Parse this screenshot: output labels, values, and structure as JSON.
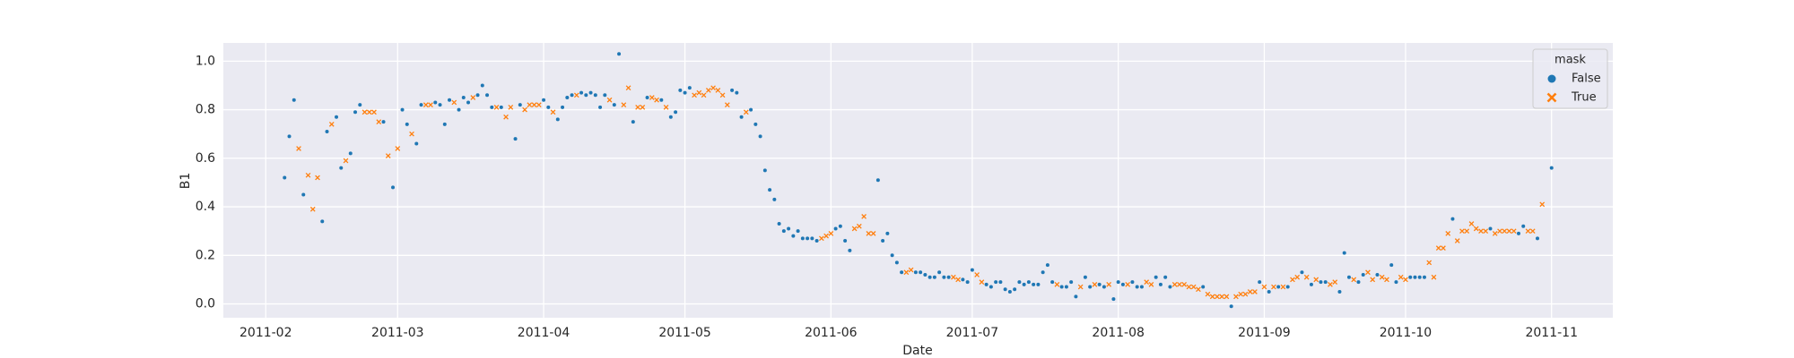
{
  "chart_data": {
    "type": "scatter",
    "xlabel": "Date",
    "ylabel": "B1",
    "legend_title": "mask",
    "legend_position": "upper right",
    "grid": true,
    "xlim": [
      "2011-01-23",
      "2011-11-14"
    ],
    "xticks": [
      {
        "value": "2011-02-01",
        "label": "2011-02"
      },
      {
        "value": "2011-03-01",
        "label": "2011-03"
      },
      {
        "value": "2011-04-01",
        "label": "2011-04"
      },
      {
        "value": "2011-05-01",
        "label": "2011-05"
      },
      {
        "value": "2011-06-01",
        "label": "2011-06"
      },
      {
        "value": "2011-07-01",
        "label": "2011-07"
      },
      {
        "value": "2011-08-01",
        "label": "2011-08"
      },
      {
        "value": "2011-09-01",
        "label": "2011-09"
      },
      {
        "value": "2011-10-01",
        "label": "2011-10"
      },
      {
        "value": "2011-11-01",
        "label": "2011-11"
      }
    ],
    "ylim": [
      -0.057,
      1.075
    ],
    "yticks": [
      {
        "value": 0,
        "label": "0.0"
      },
      0.2,
      0.4,
      0.6,
      0.8,
      {
        "value": 1,
        "label": "1.0"
      }
    ],
    "series": [
      {
        "name": "False",
        "color": "#1f77b4",
        "marker": "o",
        "x": [
          "2011-02-05",
          "2011-02-06",
          "2011-02-07",
          "2011-02-09",
          "2011-02-13",
          "2011-02-14",
          "2011-02-16",
          "2011-02-17",
          "2011-02-19",
          "2011-02-20",
          "2011-02-21",
          "2011-02-26",
          "2011-02-28",
          "2011-03-02",
          "2011-03-03",
          "2011-03-05",
          "2011-03-06",
          "2011-03-09",
          "2011-03-10",
          "2011-03-11",
          "2011-03-12",
          "2011-03-14",
          "2011-03-15",
          "2011-03-16",
          "2011-03-18",
          "2011-03-19",
          "2011-03-20",
          "2011-03-21",
          "2011-03-23",
          "2011-03-26",
          "2011-03-27",
          "2011-04-01",
          "2011-04-02",
          "2011-04-04",
          "2011-04-05",
          "2011-04-06",
          "2011-04-07",
          "2011-04-09",
          "2011-04-10",
          "2011-04-11",
          "2011-04-12",
          "2011-04-13",
          "2011-04-14",
          "2011-04-16",
          "2011-04-17",
          "2011-04-20",
          "2011-04-23",
          "2011-04-26",
          "2011-04-28",
          "2011-04-29",
          "2011-04-30",
          "2011-05-01",
          "2011-05-02",
          "2011-05-11",
          "2011-05-12",
          "2011-05-13",
          "2011-05-15",
          "2011-05-16",
          "2011-05-17",
          "2011-05-18",
          "2011-05-19",
          "2011-05-20",
          "2011-05-21",
          "2011-05-22",
          "2011-05-23",
          "2011-05-24",
          "2011-05-25",
          "2011-05-26",
          "2011-05-27",
          "2011-05-28",
          "2011-05-29",
          "2011-06-02",
          "2011-06-03",
          "2011-06-04",
          "2011-06-05",
          "2011-06-11",
          "2011-06-12",
          "2011-06-13",
          "2011-06-14",
          "2011-06-15",
          "2011-06-16",
          "2011-06-19",
          "2011-06-20",
          "2011-06-21",
          "2011-06-22",
          "2011-06-23",
          "2011-06-24",
          "2011-06-25",
          "2011-06-26",
          "2011-06-29",
          "2011-06-30",
          "2011-07-01",
          "2011-07-04",
          "2011-07-05",
          "2011-07-06",
          "2011-07-07",
          "2011-07-08",
          "2011-07-09",
          "2011-07-10",
          "2011-07-11",
          "2011-07-12",
          "2011-07-13",
          "2011-07-14",
          "2011-07-15",
          "2011-07-16",
          "2011-07-17",
          "2011-07-18",
          "2011-07-20",
          "2011-07-21",
          "2011-07-22",
          "2011-07-23",
          "2011-07-25",
          "2011-07-26",
          "2011-07-28",
          "2011-07-29",
          "2011-07-31",
          "2011-08-01",
          "2011-08-02",
          "2011-08-04",
          "2011-08-05",
          "2011-08-06",
          "2011-08-09",
          "2011-08-10",
          "2011-08-11",
          "2011-08-12",
          "2011-08-19",
          "2011-08-25",
          "2011-08-31",
          "2011-09-02",
          "2011-09-04",
          "2011-09-06",
          "2011-09-09",
          "2011-09-11",
          "2011-09-13",
          "2011-09-14",
          "2011-09-17",
          "2011-09-18",
          "2011-09-19",
          "2011-09-21",
          "2011-09-22",
          "2011-09-25",
          "2011-09-28",
          "2011-09-29",
          "2011-10-02",
          "2011-10-03",
          "2011-10-04",
          "2011-10-05",
          "2011-10-11",
          "2011-10-19",
          "2011-10-25",
          "2011-10-26",
          "2011-10-29",
          "2011-11-01"
        ],
        "values": [
          0.52,
          0.69,
          0.84,
          0.45,
          0.34,
          0.71,
          0.77,
          0.56,
          0.62,
          0.79,
          0.82,
          0.75,
          0.48,
          0.8,
          0.74,
          0.66,
          0.82,
          0.83,
          0.82,
          0.74,
          0.84,
          0.8,
          0.85,
          0.83,
          0.86,
          0.9,
          0.86,
          0.81,
          0.81,
          0.68,
          0.82,
          0.84,
          0.81,
          0.76,
          0.81,
          0.85,
          0.86,
          0.87,
          0.86,
          0.87,
          0.86,
          0.81,
          0.86,
          0.82,
          1.03,
          0.75,
          0.85,
          0.84,
          0.77,
          0.79,
          0.88,
          0.87,
          0.89,
          0.88,
          0.87,
          0.77,
          0.8,
          0.74,
          0.69,
          0.55,
          0.47,
          0.43,
          0.33,
          0.3,
          0.31,
          0.28,
          0.3,
          0.27,
          0.27,
          0.27,
          0.26,
          0.31,
          0.32,
          0.26,
          0.22,
          0.51,
          0.26,
          0.29,
          0.2,
          0.17,
          0.13,
          0.13,
          0.13,
          0.12,
          0.11,
          0.11,
          0.13,
          0.11,
          0.11,
          0.1,
          0.09,
          0.14,
          0.08,
          0.07,
          0.09,
          0.09,
          0.06,
          0.05,
          0.06,
          0.09,
          0.08,
          0.09,
          0.08,
          0.08,
          0.13,
          0.16,
          0.09,
          0.07,
          0.07,
          0.09,
          0.03,
          0.11,
          0.07,
          0.08,
          0.07,
          0.02,
          0.09,
          0.08,
          0.09,
          0.07,
          0.07,
          0.11,
          0.08,
          0.11,
          0.07,
          0.07,
          -0.01,
          0.09,
          0.05,
          0.07,
          0.07,
          0.13,
          0.08,
          0.09,
          0.09,
          0.05,
          0.21,
          0.11,
          0.09,
          0.12,
          0.12,
          0.16,
          0.09,
          0.11,
          0.11,
          0.11,
          0.11,
          0.35,
          0.31,
          0.29,
          0.32,
          0.27,
          0.56
        ]
      },
      {
        "name": "True",
        "color": "#ff7f0e",
        "marker": "x",
        "x": [
          "2011-02-08",
          "2011-02-10",
          "2011-02-11",
          "2011-02-12",
          "2011-02-15",
          "2011-02-18",
          "2011-02-22",
          "2011-02-23",
          "2011-02-24",
          "2011-02-25",
          "2011-02-27",
          "2011-03-01",
          "2011-03-04",
          "2011-03-07",
          "2011-03-08",
          "2011-03-13",
          "2011-03-17",
          "2011-03-22",
          "2011-03-24",
          "2011-03-25",
          "2011-03-28",
          "2011-03-29",
          "2011-03-30",
          "2011-03-31",
          "2011-04-03",
          "2011-04-08",
          "2011-04-15",
          "2011-04-18",
          "2011-04-19",
          "2011-04-21",
          "2011-04-22",
          "2011-04-24",
          "2011-04-25",
          "2011-04-27",
          "2011-05-03",
          "2011-05-04",
          "2011-05-05",
          "2011-05-06",
          "2011-05-07",
          "2011-05-08",
          "2011-05-09",
          "2011-05-10",
          "2011-05-14",
          "2011-05-30",
          "2011-05-31",
          "2011-06-01",
          "2011-06-06",
          "2011-06-07",
          "2011-06-08",
          "2011-06-09",
          "2011-06-10",
          "2011-06-17",
          "2011-06-18",
          "2011-06-27",
          "2011-06-28",
          "2011-07-02",
          "2011-07-03",
          "2011-07-19",
          "2011-07-24",
          "2011-07-27",
          "2011-07-30",
          "2011-08-03",
          "2011-08-07",
          "2011-08-08",
          "2011-08-13",
          "2011-08-14",
          "2011-08-15",
          "2011-08-16",
          "2011-08-17",
          "2011-08-18",
          "2011-08-20",
          "2011-08-21",
          "2011-08-22",
          "2011-08-23",
          "2011-08-24",
          "2011-08-26",
          "2011-08-27",
          "2011-08-28",
          "2011-08-29",
          "2011-08-30",
          "2011-09-01",
          "2011-09-03",
          "2011-09-05",
          "2011-09-07",
          "2011-09-08",
          "2011-09-10",
          "2011-09-12",
          "2011-09-15",
          "2011-09-16",
          "2011-09-20",
          "2011-09-23",
          "2011-09-24",
          "2011-09-26",
          "2011-09-27",
          "2011-09-30",
          "2011-10-01",
          "2011-10-06",
          "2011-10-07",
          "2011-10-08",
          "2011-10-09",
          "2011-10-10",
          "2011-10-12",
          "2011-10-13",
          "2011-10-14",
          "2011-10-15",
          "2011-10-16",
          "2011-10-17",
          "2011-10-18",
          "2011-10-20",
          "2011-10-21",
          "2011-10-22",
          "2011-10-23",
          "2011-10-24",
          "2011-10-27",
          "2011-10-28",
          "2011-10-30"
        ],
        "values": [
          0.64,
          0.53,
          0.39,
          0.52,
          0.74,
          0.59,
          0.79,
          0.79,
          0.79,
          0.75,
          0.61,
          0.64,
          0.7,
          0.82,
          0.82,
          0.83,
          0.85,
          0.81,
          0.77,
          0.81,
          0.8,
          0.82,
          0.82,
          0.82,
          0.79,
          0.86,
          0.84,
          0.82,
          0.89,
          0.81,
          0.81,
          0.85,
          0.84,
          0.81,
          0.86,
          0.87,
          0.86,
          0.88,
          0.89,
          0.88,
          0.86,
          0.82,
          0.79,
          0.27,
          0.28,
          0.29,
          0.31,
          0.32,
          0.36,
          0.29,
          0.29,
          0.13,
          0.14,
          0.11,
          0.1,
          0.12,
          0.09,
          0.08,
          0.07,
          0.08,
          0.08,
          0.08,
          0.09,
          0.08,
          0.08,
          0.08,
          0.08,
          0.07,
          0.07,
          0.06,
          0.04,
          0.03,
          0.03,
          0.03,
          0.03,
          0.03,
          0.04,
          0.04,
          0.05,
          0.05,
          0.07,
          0.07,
          0.07,
          0.1,
          0.11,
          0.11,
          0.1,
          0.08,
          0.09,
          0.1,
          0.13,
          0.1,
          0.11,
          0.1,
          0.11,
          0.1,
          0.17,
          0.11,
          0.23,
          0.23,
          0.29,
          0.26,
          0.3,
          0.3,
          0.33,
          0.31,
          0.3,
          0.3,
          0.29,
          0.3,
          0.3,
          0.3,
          0.3,
          0.3,
          0.3,
          0.41
        ]
      }
    ]
  }
}
